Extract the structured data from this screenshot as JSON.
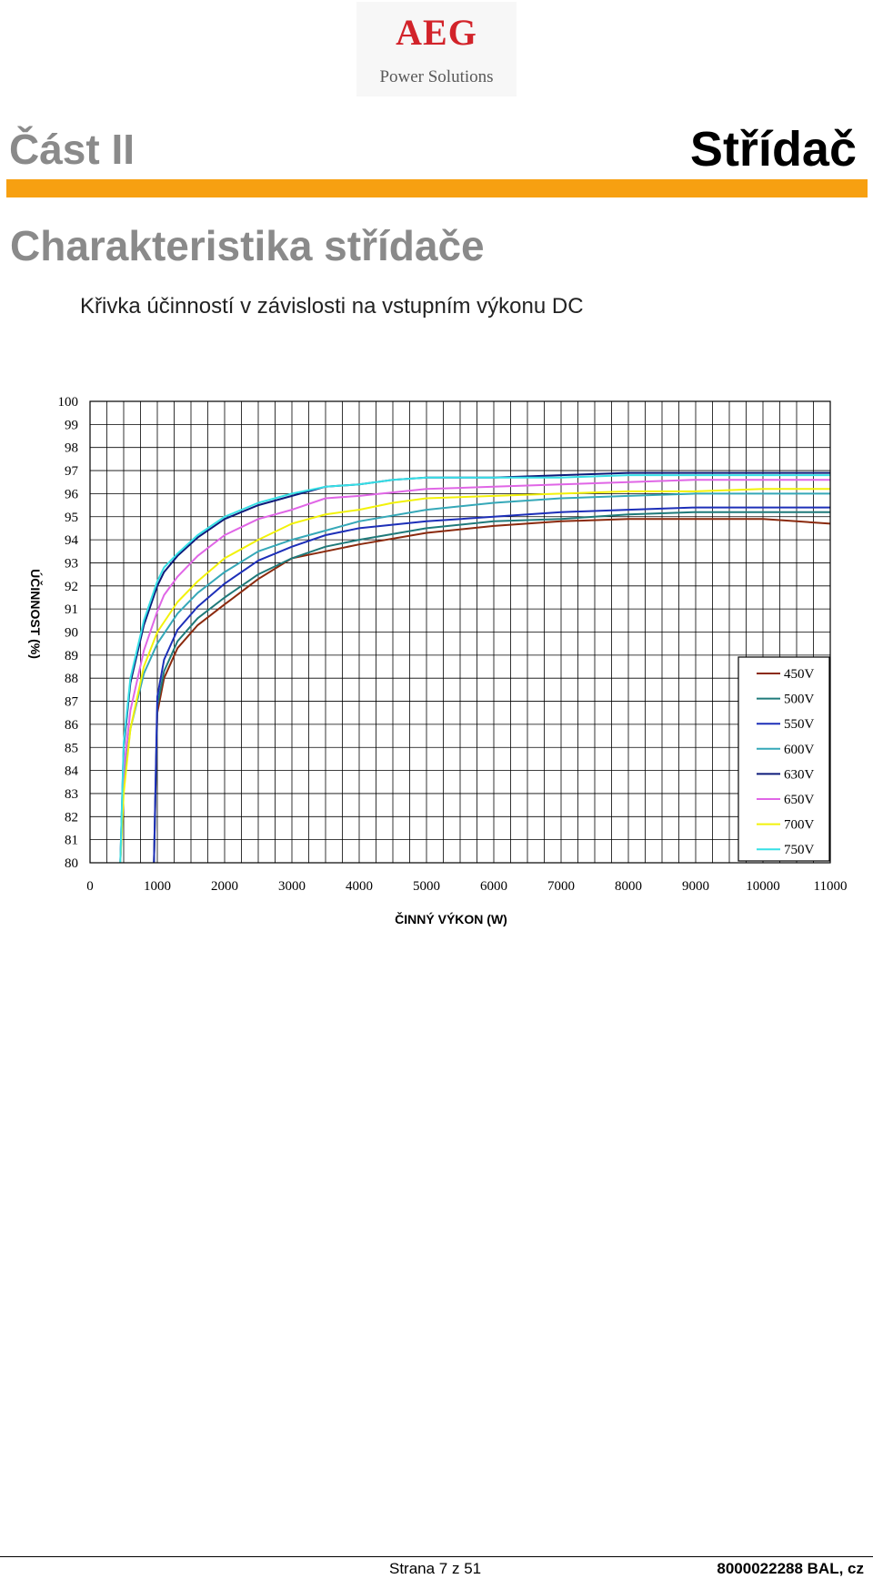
{
  "header": {
    "logo_brand": "AEG",
    "logo_subtitle": "Power Solutions",
    "part_label": "Část II",
    "part_title": "Střídač"
  },
  "section_title": "Charakteristika střídače",
  "chart_heading": "Křivka účinností v závislosti na vstupním výkonu DC",
  "colors": {
    "accent": "#f7a011",
    "logo_red": "#d2232a",
    "heading_gray": "#8a8a8a"
  },
  "chart_data": {
    "type": "line",
    "title": "Křivka účinností v závislosti na vstupním výkonu DC",
    "xlabel": "ČINNÝ VÝKON (W)",
    "ylabel": "ÚČINNOST (%)",
    "xlim": [
      0,
      11000
    ],
    "ylim": [
      80,
      100
    ],
    "x_ticks": [
      0,
      1000,
      2000,
      3000,
      4000,
      5000,
      6000,
      7000,
      8000,
      9000,
      10000,
      11000
    ],
    "y_ticks": [
      80,
      81,
      82,
      83,
      84,
      85,
      86,
      87,
      88,
      89,
      90,
      91,
      92,
      93,
      94,
      95,
      96,
      97,
      98,
      99,
      100
    ],
    "grid": true,
    "legend_position": "bottom-right",
    "series": [
      {
        "name": "450V",
        "color": "#8b2a0e",
        "x": [
          950,
          1000,
          1100,
          1300,
          1600,
          2000,
          2500,
          3000,
          3500,
          4000,
          5000,
          6000,
          7000,
          8000,
          9000,
          10000,
          10500,
          11000
        ],
        "y": [
          80,
          86.5,
          88.0,
          89.3,
          90.3,
          91.2,
          92.3,
          93.2,
          93.5,
          93.8,
          94.3,
          94.6,
          94.8,
          94.9,
          94.9,
          94.9,
          94.8,
          94.7
        ]
      },
      {
        "name": "500V",
        "color": "#1f7a7a",
        "x": [
          950,
          1000,
          1100,
          1300,
          1600,
          2000,
          2500,
          3000,
          3500,
          4000,
          5000,
          6000,
          7000,
          8000,
          9000,
          10000,
          11000
        ],
        "y": [
          80,
          86.8,
          88.3,
          89.6,
          90.6,
          91.5,
          92.5,
          93.2,
          93.7,
          94.0,
          94.5,
          94.8,
          94.9,
          95.1,
          95.2,
          95.2,
          95.2
        ]
      },
      {
        "name": "550V",
        "color": "#1d2fb8",
        "x": [
          950,
          1000,
          1100,
          1300,
          1600,
          2000,
          2500,
          3000,
          3500,
          4000,
          5000,
          6000,
          7000,
          8000,
          9000,
          10000,
          11000
        ],
        "y": [
          80,
          87.2,
          88.8,
          90.1,
          91.1,
          92.1,
          93.1,
          93.7,
          94.2,
          94.5,
          94.8,
          95.0,
          95.2,
          95.3,
          95.4,
          95.4,
          95.4
        ]
      },
      {
        "name": "600V",
        "color": "#35a8b8",
        "x": [
          450,
          500,
          600,
          800,
          1000,
          1300,
          1600,
          2000,
          2500,
          3000,
          3500,
          4000,
          5000,
          6000,
          7000,
          8000,
          9000,
          10000,
          11000
        ],
        "y": [
          80,
          83.5,
          85.8,
          88.2,
          89.5,
          90.8,
          91.7,
          92.6,
          93.5,
          94.0,
          94.4,
          94.8,
          95.3,
          95.6,
          95.8,
          95.9,
          96.0,
          96.0,
          96.0
        ]
      },
      {
        "name": "630V",
        "color": "#0d1b7a",
        "x": [
          450,
          500,
          600,
          800,
          1000,
          1100,
          1300,
          1600,
          2000,
          2500,
          3000,
          3500,
          4000,
          4500,
          5000,
          6000,
          7000,
          8000,
          9000,
          10000,
          11000
        ],
        "y": [
          80,
          85.0,
          87.8,
          90.3,
          92.0,
          92.6,
          93.3,
          94.1,
          94.9,
          95.5,
          95.9,
          96.3,
          96.4,
          96.6,
          96.7,
          96.7,
          96.8,
          96.9,
          96.9,
          96.9,
          96.9
        ]
      },
      {
        "name": "650V",
        "color": "#e066e6",
        "x": [
          450,
          500,
          600,
          800,
          1000,
          1100,
          1300,
          1600,
          2000,
          2500,
          3000,
          3500,
          4000,
          5000,
          6000,
          7000,
          8000,
          9000,
          10000,
          11000
        ],
        "y": [
          80,
          84.0,
          86.6,
          89.2,
          90.9,
          91.6,
          92.4,
          93.3,
          94.2,
          94.9,
          95.3,
          95.8,
          95.9,
          96.2,
          96.3,
          96.4,
          96.5,
          96.6,
          96.6,
          96.6
        ]
      },
      {
        "name": "700V",
        "color": "#f2f20a",
        "x": [
          450,
          500,
          600,
          800,
          1000,
          1300,
          1600,
          2000,
          2500,
          3000,
          3500,
          4000,
          4500,
          5000,
          6000,
          7000,
          8000,
          9000,
          10000,
          11000
        ],
        "y": [
          80,
          83.0,
          85.8,
          88.5,
          90.0,
          91.3,
          92.2,
          93.2,
          94.0,
          94.7,
          95.1,
          95.3,
          95.6,
          95.8,
          95.9,
          96.0,
          96.1,
          96.1,
          96.2,
          96.2
        ]
      },
      {
        "name": "750V",
        "color": "#36e0e6",
        "x": [
          450,
          500,
          600,
          800,
          1000,
          1100,
          1300,
          1600,
          2000,
          2500,
          3000,
          3500,
          4000,
          4500,
          5000,
          6000,
          7000,
          8000,
          9000,
          10000,
          11000
        ],
        "y": [
          80,
          85.2,
          88.0,
          90.5,
          92.2,
          92.8,
          93.4,
          94.2,
          95.0,
          95.6,
          96.0,
          96.3,
          96.4,
          96.6,
          96.7,
          96.7,
          96.7,
          96.8,
          96.8,
          96.8,
          96.8
        ]
      }
    ]
  },
  "footer": {
    "page_number": "Strana 7 z 51",
    "doc_code": "8000022288 BAL, cz"
  }
}
